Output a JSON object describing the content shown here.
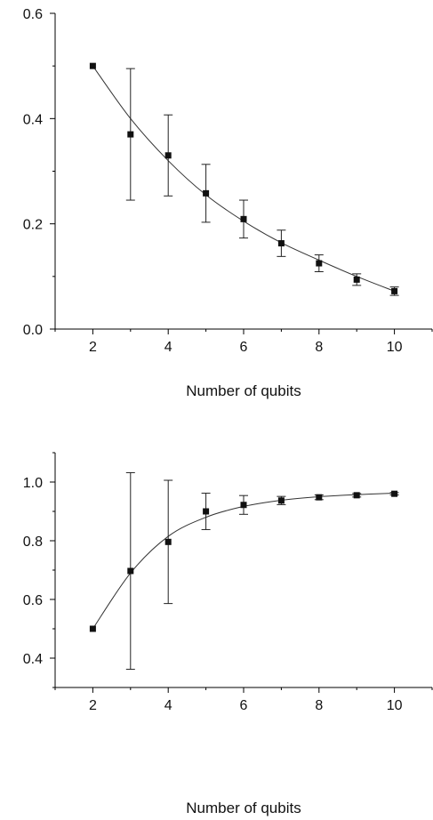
{
  "chart_data": [
    {
      "type": "scatter",
      "xlabel": "Number of qubits",
      "ylabel": "",
      "xlim": [
        1,
        11
      ],
      "ylim": [
        0,
        0.6
      ],
      "xticks": [
        "2",
        "4",
        "6",
        "8",
        "10"
      ],
      "yticks": [
        "0.0",
        "0.2",
        "0.4",
        "0.6"
      ],
      "has_fit_curve": true,
      "series": [
        {
          "x": [
            2,
            3,
            4,
            5,
            6,
            7,
            8,
            9,
            10
          ],
          "y": [
            0.5,
            0.37,
            0.33,
            0.258,
            0.209,
            0.163,
            0.125,
            0.094,
            0.072
          ],
          "err": [
            0,
            0.125,
            0.077,
            0.055,
            0.036,
            0.025,
            0.016,
            0.011,
            0.008
          ]
        }
      ],
      "fit_curve": {
        "x": [
          2,
          3,
          4,
          5,
          6,
          7,
          8,
          9,
          10
        ],
        "y": [
          0.5,
          0.4,
          0.32,
          0.255,
          0.205,
          0.164,
          0.131,
          0.1,
          0.072
        ]
      }
    },
    {
      "type": "scatter",
      "xlabel": "Number of qubits",
      "ylabel": "",
      "xlim": [
        1,
        11
      ],
      "ylim": [
        0.3,
        1.1
      ],
      "xticks": [
        "2",
        "4",
        "6",
        "8",
        "10"
      ],
      "yticks": [
        "0.4",
        "0.6",
        "0.8",
        "1.0"
      ],
      "has_fit_curve": true,
      "series": [
        {
          "x": [
            2,
            3,
            4,
            5,
            6,
            7,
            8,
            9,
            10
          ],
          "y": [
            0.5,
            0.697,
            0.796,
            0.9,
            0.922,
            0.937,
            0.948,
            0.955,
            0.96
          ],
          "err": [
            0,
            0.335,
            0.21,
            0.062,
            0.032,
            0.014,
            0.008,
            0.006,
            0.004
          ]
        }
      ],
      "fit_curve": {
        "x": [
          2,
          3,
          4,
          5,
          6,
          7,
          8,
          9,
          10
        ],
        "y": [
          0.5,
          0.69,
          0.815,
          0.88,
          0.917,
          0.938,
          0.95,
          0.957,
          0.962
        ]
      }
    }
  ]
}
